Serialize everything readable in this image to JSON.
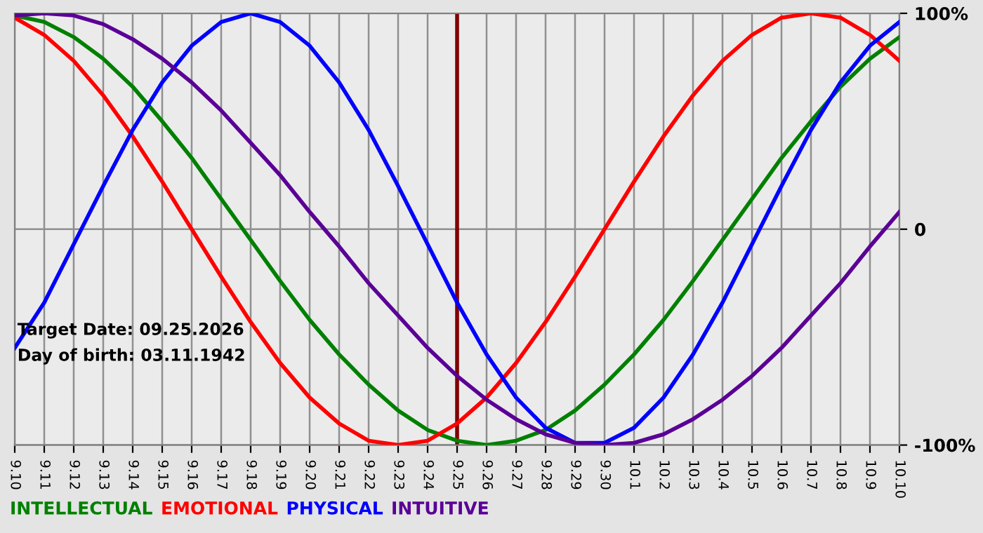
{
  "chart_data": {
    "type": "line",
    "categories": [
      "9.10",
      "9.11",
      "9.12",
      "9.13",
      "9.14",
      "9.15",
      "9.16",
      "9.17",
      "9.18",
      "9.19",
      "9.20",
      "9.21",
      "9.22",
      "9.23",
      "9.24",
      "9.25",
      "9.26",
      "9.27",
      "9.28",
      "9.29",
      "9.30",
      "10.1",
      "10.2",
      "10.3",
      "10.4",
      "10.5",
      "10.6",
      "10.7",
      "10.8",
      "10.9",
      "10.10"
    ],
    "series": [
      {
        "name": "INTELLECTUAL",
        "color": "#008000",
        "values": [
          99,
          96,
          89,
          79,
          66,
          50,
          33,
          14,
          -5,
          -24,
          -42,
          -58,
          -72,
          -84,
          -93,
          -98,
          -100,
          -98,
          -93,
          -84,
          -72,
          -58,
          -42,
          -24,
          -5,
          14,
          33,
          50,
          66,
          79,
          89
        ]
      },
      {
        "name": "EMOTIONAL",
        "color": "#ff0000",
        "values": [
          98,
          90,
          78,
          62,
          43,
          22,
          0,
          -22,
          -43,
          -62,
          -78,
          -90,
          -98,
          -100,
          -98,
          -90,
          -78,
          -62,
          -43,
          -22,
          0,
          22,
          43,
          62,
          78,
          90,
          98,
          100,
          98,
          90,
          78
        ]
      },
      {
        "name": "PHYSICAL",
        "color": "#0000ff",
        "values": [
          -55,
          -34,
          -7,
          20,
          46,
          68,
          85,
          96,
          100,
          96,
          85,
          68,
          46,
          20,
          -7,
          -34,
          -58,
          -78,
          -92,
          -99,
          -99,
          -92,
          -78,
          -58,
          -34,
          -7,
          20,
          46,
          68,
          85,
          96
        ]
      },
      {
        "name": "INTUITIVE",
        "color": "#5a0096",
        "values": [
          99,
          100,
          99,
          95,
          88,
          79,
          68,
          55,
          40,
          25,
          8,
          -8,
          -25,
          -40,
          -55,
          -68,
          -79,
          -88,
          -95,
          -99,
          -100,
          -99,
          -95,
          -88,
          -79,
          -68,
          -55,
          -40,
          -25,
          -8,
          8
        ]
      }
    ],
    "ylim": [
      -100,
      100
    ],
    "yticks": [
      {
        "value": 100,
        "label": "100%"
      },
      0,
      {
        "value": -100,
        "label": "-100%"
      }
    ],
    "grid": true,
    "legend": "bottom left",
    "marker": "none",
    "line_style": "solid",
    "ref_lines": [
      {
        "axis": "x",
        "value": "9.25",
        "color": "#800000"
      }
    ],
    "annotations": [
      "Target Date: 09.25.2026",
      "Day of birth: 03.11.1942"
    ]
  }
}
